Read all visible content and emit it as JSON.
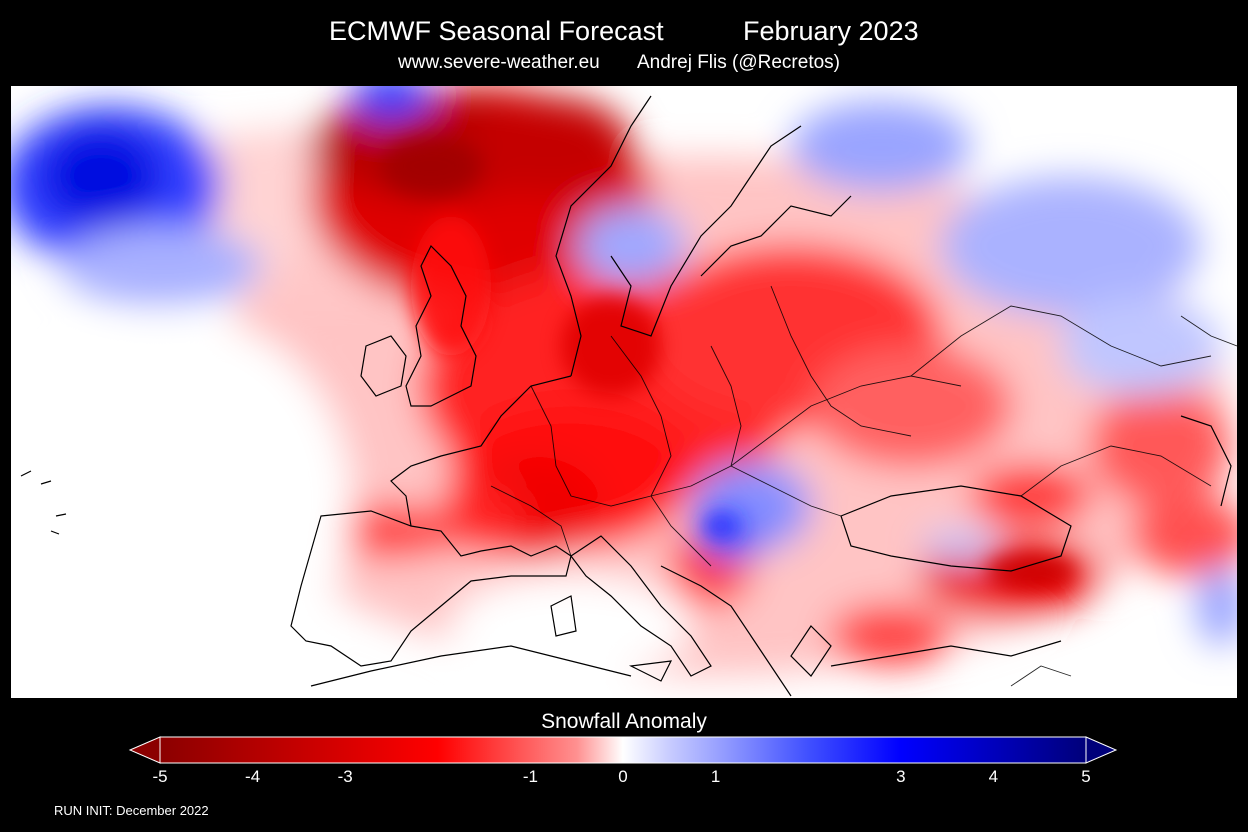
{
  "header": {
    "title": "ECMWF Seasonal Forecast",
    "date": "February 2023",
    "site": "www.severe-weather.eu",
    "author": "Andrej Flis (@Recretos)"
  },
  "legend": {
    "title": "Snowfall Anomaly",
    "min": -5,
    "max": 5,
    "tick_labels": [
      "-5",
      "-4",
      "-3",
      "-1",
      "0",
      "1",
      "3",
      "4",
      "5"
    ],
    "tick_values": [
      -5,
      -4,
      -3,
      -1,
      0,
      1,
      3,
      4,
      5
    ],
    "colors": {
      "strong_negative": "#8b0000",
      "negative": "#ff0000",
      "neutral": "#ffffff",
      "positive": "#0000ff",
      "strong_positive": "#00008b"
    }
  },
  "footer": {
    "run_init": "RUN INIT: December 2022"
  },
  "map": {
    "region": "Europe",
    "variable": "Snowfall Anomaly"
  }
}
